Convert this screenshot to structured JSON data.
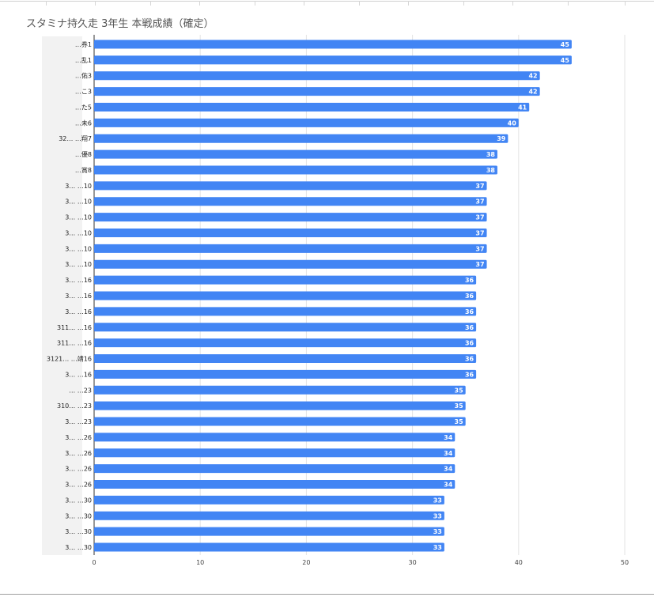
{
  "title": "スタミナ持久走 3年生 本戦成績（確定）",
  "chart_data": {
    "type": "bar",
    "orientation": "horizontal",
    "title": "スタミナ持久走 3年生 本戦成績（確定）",
    "xlabel": "",
    "ylabel": "",
    "xlim": [
      0,
      50
    ],
    "x_ticks": [
      0,
      10,
      20,
      30,
      40,
      50
    ],
    "grid": true,
    "categories": [
      "…券1",
      "…乱1",
      "…佑3",
      "…こ3",
      "…た5",
      "…未6",
      "32… …翔7",
      "…優8",
      "…賞8",
      "3… …10",
      "3… …10",
      "3… …10",
      "3… …10",
      "3… …10",
      "3… …10",
      "3… …16",
      "3… …16",
      "3… …16",
      "311… …16",
      "311… …16",
      "3121… …靖16",
      "3… …16",
      "… …23",
      "310… …23",
      "3… …23",
      "3… …26",
      "3… …26",
      "3… …26",
      "3… …26",
      "3… …30",
      "3… …30",
      "3… …30",
      "3… …30"
    ],
    "series": [
      {
        "values": [
          45,
          45,
          42,
          42,
          41,
          40,
          39,
          38,
          38,
          37,
          37,
          37,
          37,
          37,
          37,
          36,
          36,
          36,
          36,
          36,
          36,
          36,
          35,
          35,
          35,
          34,
          34,
          34,
          34,
          33,
          33,
          33,
          33
        ],
        "color": "#4285f4"
      }
    ]
  }
}
